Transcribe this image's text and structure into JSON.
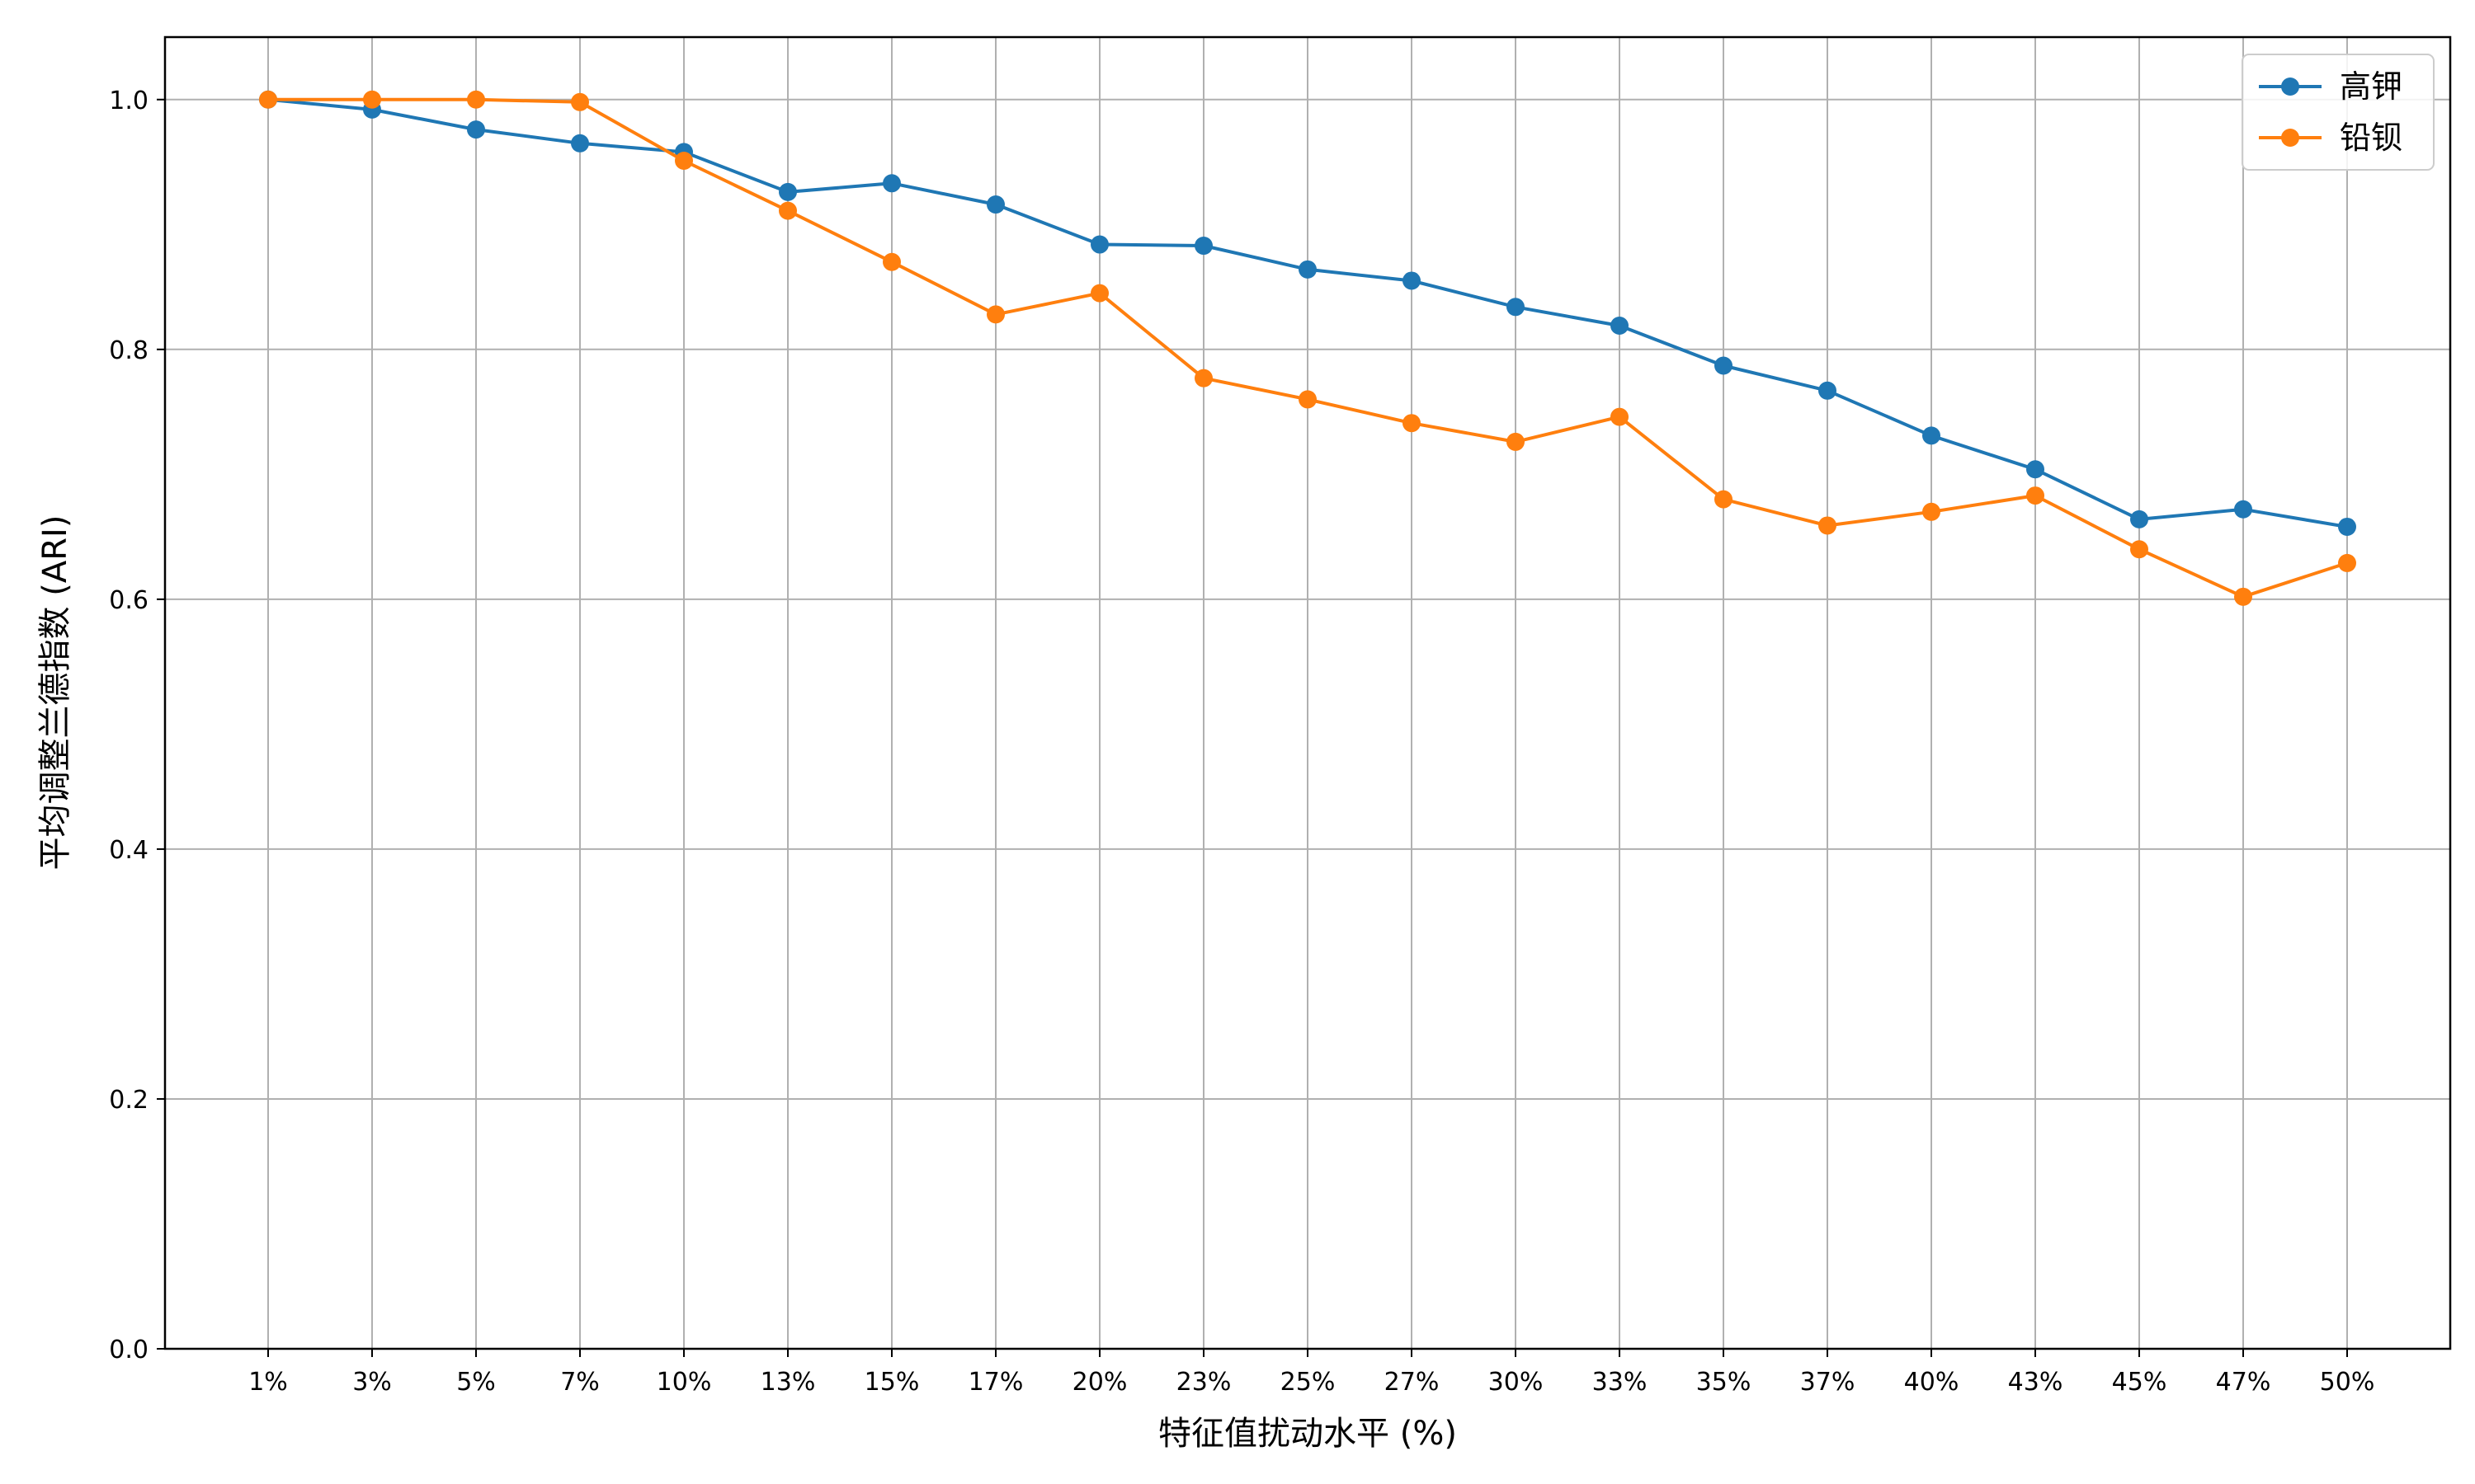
{
  "chart_data": {
    "type": "line",
    "xlabel": "特征值扰动水平 (%)",
    "ylabel": "平均调整兰德指数 (ARI)",
    "categories": [
      "1%",
      "3%",
      "5%",
      "7%",
      "10%",
      "13%",
      "15%",
      "17%",
      "20%",
      "23%",
      "25%",
      "27%",
      "30%",
      "33%",
      "35%",
      "37%",
      "40%",
      "43%",
      "45%",
      "47%",
      "50%"
    ],
    "ylim": [
      0.0,
      1.05
    ],
    "yticks": [
      "0.0",
      "0.2",
      "0.4",
      "0.6",
      "0.8",
      "1.0"
    ],
    "grid": true,
    "legend_position": "top-right",
    "series": [
      {
        "name": "高钾",
        "color": "#1f77b4",
        "marker": "circle",
        "values": [
          1.0,
          0.992,
          0.976,
          0.965,
          0.958,
          0.926,
          0.933,
          0.916,
          0.884,
          0.883,
          0.864,
          0.855,
          0.834,
          0.819,
          0.787,
          0.767,
          0.731,
          0.704,
          0.664,
          0.672,
          0.658
        ]
      },
      {
        "name": "铅钡",
        "color": "#ff7f0e",
        "marker": "circle",
        "values": [
          1.0,
          1.0,
          1.0,
          0.998,
          0.951,
          0.911,
          0.87,
          0.828,
          0.845,
          0.777,
          0.76,
          0.741,
          0.726,
          0.746,
          0.68,
          0.659,
          0.67,
          0.683,
          0.64,
          0.602,
          0.629
        ]
      }
    ]
  }
}
